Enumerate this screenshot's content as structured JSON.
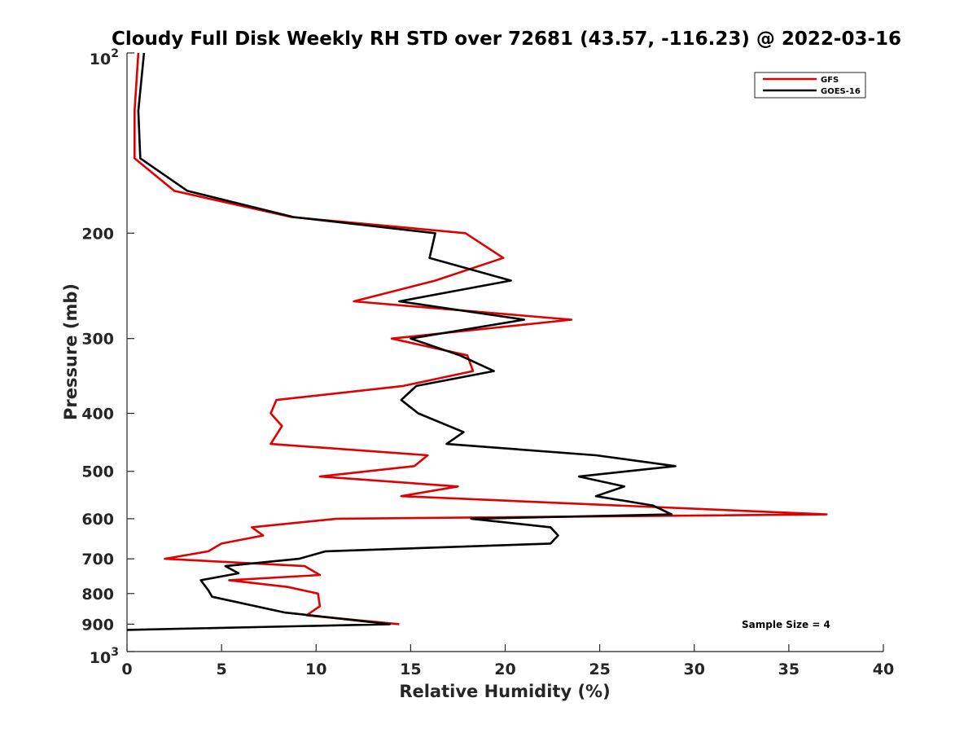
{
  "chart_data": {
    "type": "line",
    "title": "Cloudy Full Disk Weekly RH STD over 72681 (43.57, -116.23) @ 2022-03-16",
    "xlabel": "Relative Humidity (%)",
    "ylabel": "Pressure (mb)",
    "xlim": [
      0,
      40
    ],
    "ylim": [
      100,
      1000
    ],
    "y_scale": "log",
    "y_reversed": true,
    "x_ticks": [
      "0",
      "5",
      "10",
      "15",
      "20",
      "25",
      "30",
      "35",
      "40"
    ],
    "y_ticks": [
      {
        "value": 100,
        "label": "10",
        "sup": "2"
      },
      {
        "value": 200,
        "label": "200"
      },
      {
        "value": 300,
        "label": "300"
      },
      {
        "value": 400,
        "label": "400"
      },
      {
        "value": 500,
        "label": "500"
      },
      {
        "value": 600,
        "label": "600"
      },
      {
        "value": 700,
        "label": "700"
      },
      {
        "value": 800,
        "label": "800"
      },
      {
        "value": 900,
        "label": "900"
      },
      {
        "value": 1000,
        "label": "10",
        "sup": "3"
      }
    ],
    "grid": false,
    "legend_position": "top-right",
    "annotation": "Sample Size = 4",
    "series": [
      {
        "name": "GFS",
        "color": "#e00000",
        "points": [
          [
            0.6,
            100
          ],
          [
            0.4,
            125
          ],
          [
            0.4,
            150
          ],
          [
            2.5,
            170
          ],
          [
            8.7,
            188
          ],
          [
            17.9,
            200
          ],
          [
            19.9,
            220
          ],
          [
            16.3,
            240
          ],
          [
            12.0,
            260
          ],
          [
            23.5,
            279
          ],
          [
            14.0,
            300
          ],
          [
            18.0,
            320
          ],
          [
            18.3,
            340
          ],
          [
            14.6,
            360
          ],
          [
            7.9,
            380
          ],
          [
            7.6,
            400
          ],
          [
            8.2,
            420
          ],
          [
            7.6,
            450
          ],
          [
            15.9,
            470
          ],
          [
            15.2,
            490
          ],
          [
            10.2,
            510
          ],
          [
            17.5,
            530
          ],
          [
            14.5,
            550
          ],
          [
            37.0,
            590
          ],
          [
            11.1,
            600
          ],
          [
            6.6,
            620
          ],
          [
            7.2,
            640
          ],
          [
            5.0,
            660
          ],
          [
            4.3,
            680
          ],
          [
            2.0,
            700
          ],
          [
            9.4,
            720
          ],
          [
            10.2,
            745
          ],
          [
            5.4,
            760
          ],
          [
            8.5,
            780
          ],
          [
            10.1,
            800
          ],
          [
            10.2,
            840
          ],
          [
            9.5,
            870
          ],
          [
            14.4,
            900
          ]
        ]
      },
      {
        "name": "GOES-16",
        "color": "#000000",
        "points": [
          [
            0.9,
            100
          ],
          [
            0.6,
            125
          ],
          [
            0.7,
            150
          ],
          [
            3.2,
            170
          ],
          [
            8.8,
            188
          ],
          [
            16.3,
            200
          ],
          [
            16.0,
            220
          ],
          [
            20.3,
            240
          ],
          [
            14.4,
            260
          ],
          [
            21.0,
            279
          ],
          [
            15.0,
            300
          ],
          [
            17.6,
            320
          ],
          [
            19.4,
            340
          ],
          [
            15.3,
            360
          ],
          [
            14.5,
            380
          ],
          [
            15.4,
            400
          ],
          [
            17.8,
            430
          ],
          [
            16.9,
            450
          ],
          [
            24.8,
            470
          ],
          [
            29.0,
            490
          ],
          [
            23.9,
            510
          ],
          [
            26.3,
            530
          ],
          [
            24.8,
            550
          ],
          [
            27.8,
            570
          ],
          [
            28.8,
            590
          ],
          [
            18.2,
            600
          ],
          [
            22.4,
            620
          ],
          [
            22.8,
            640
          ],
          [
            22.4,
            660
          ],
          [
            10.5,
            680
          ],
          [
            9.1,
            700
          ],
          [
            5.2,
            720
          ],
          [
            5.9,
            740
          ],
          [
            3.9,
            760
          ],
          [
            4.3,
            790
          ],
          [
            4.5,
            810
          ],
          [
            8.3,
            860
          ],
          [
            13.9,
            900
          ],
          [
            0.0,
            920
          ]
        ]
      }
    ]
  }
}
